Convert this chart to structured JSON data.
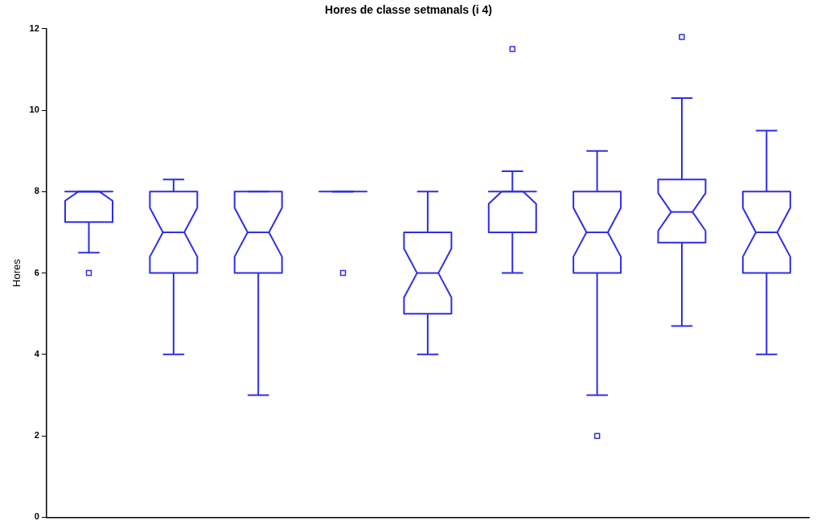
{
  "chart_data": {
    "type": "box",
    "title": "Hores de classe setmanals (i 4)",
    "ylabel": "Hores",
    "categories": [
      null,
      null,
      null,
      null,
      null,
      null,
      null,
      null,
      null
    ],
    "color": "#2e2ee6",
    "marker": "square",
    "grid": false,
    "legend": false,
    "tick_labels": "y",
    "ylim": [
      0,
      12
    ],
    "yticks": [
      0,
      2,
      4,
      6,
      8,
      10,
      12
    ],
    "boxes": [
      {
        "low": 6.5,
        "q1": 7.25,
        "median": 8,
        "q3": 8,
        "high": 8,
        "outliers": [
          6
        ]
      },
      {
        "low": 4,
        "q1": 6,
        "median": 7,
        "q3": 8,
        "high": 8.3
      },
      {
        "low": 3,
        "q1": 6,
        "median": 7,
        "q3": 8,
        "high": 8
      },
      {
        "low": 8,
        "q1": 8,
        "median": 8,
        "q3": 8,
        "high": 8,
        "outliers": [
          6
        ]
      },
      {
        "low": 4,
        "q1": 5,
        "median": 6,
        "q3": 7,
        "high": 8
      },
      {
        "low": 6,
        "q1": 7,
        "median": 8,
        "q3": 8,
        "high": 8.5,
        "outliers": [
          11.5
        ]
      },
      {
        "low": 3,
        "q1": 6,
        "median": 7,
        "q3": 8,
        "high": 9,
        "outliers": [
          2
        ]
      },
      {
        "low": 4.7,
        "q1": 6.75,
        "median": 7.5,
        "q3": 8.3,
        "high": 10.3,
        "outliers": [
          11.8
        ]
      },
      {
        "low": 4,
        "q1": 6,
        "median": 7,
        "q3": 8,
        "high": 9.5
      }
    ]
  }
}
